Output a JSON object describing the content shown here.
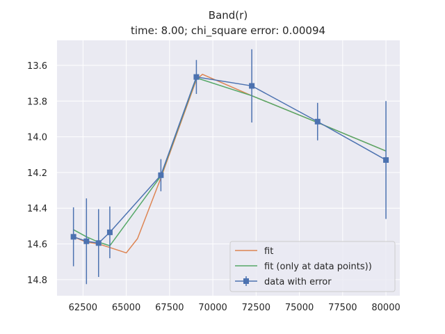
{
  "chart_data": {
    "type": "line",
    "title": "Band(r)",
    "subtitle": "time: 8.00; chi_square error: 0.00094",
    "xlabel": "",
    "ylabel": "",
    "xlim": [
      61000,
      80800
    ],
    "ylim": [
      14.89,
      13.46
    ],
    "y_inverted": true,
    "grid": true,
    "legend_position": "lower-right",
    "x_ticks": [
      62500,
      65000,
      67500,
      70000,
      72500,
      75000,
      77500,
      80000
    ],
    "y_ticks": [
      13.6,
      13.8,
      14.0,
      14.2,
      14.4,
      14.6,
      14.8
    ],
    "x_tick_labels": [
      "62500",
      "65000",
      "67500",
      "70000",
      "72500",
      "75000",
      "77500",
      "80000"
    ],
    "y_tick_labels": [
      "13.6",
      "13.8",
      "14.0",
      "14.2",
      "14.4",
      "14.6",
      "14.8"
    ],
    "colors": {
      "background": "#eaeaf2",
      "grid": "#ffffff",
      "fit": "#dd8452",
      "fit_points": "#55a868",
      "data": "#4c72b0"
    },
    "series": [
      {
        "name": "fit",
        "x": [
          61950,
          62700,
          63400,
          64050,
          65000,
          65650,
          67000,
          69050,
          69400,
          72250,
          76050,
          80000
        ],
        "y": [
          14.56,
          14.59,
          14.6,
          14.62,
          14.65,
          14.57,
          14.23,
          13.68,
          13.65,
          13.77,
          13.92,
          14.08
        ]
      },
      {
        "name": "fit (only at data points))",
        "x": [
          61950,
          62700,
          63400,
          64050,
          67000,
          69050,
          72250,
          76050,
          80000
        ],
        "y": [
          14.52,
          14.56,
          14.59,
          14.61,
          14.22,
          13.67,
          13.77,
          13.92,
          14.08
        ]
      },
      {
        "name": "data with error",
        "x": [
          61950,
          62700,
          63400,
          64050,
          67000,
          69050,
          72250,
          76050,
          80000
        ],
        "y": [
          14.56,
          14.585,
          14.595,
          14.535,
          14.215,
          13.665,
          13.715,
          13.915,
          14.13
        ],
        "yerr": [
          0.165,
          0.24,
          0.19,
          0.145,
          0.09,
          0.095,
          0.205,
          0.105,
          0.33
        ]
      }
    ]
  }
}
